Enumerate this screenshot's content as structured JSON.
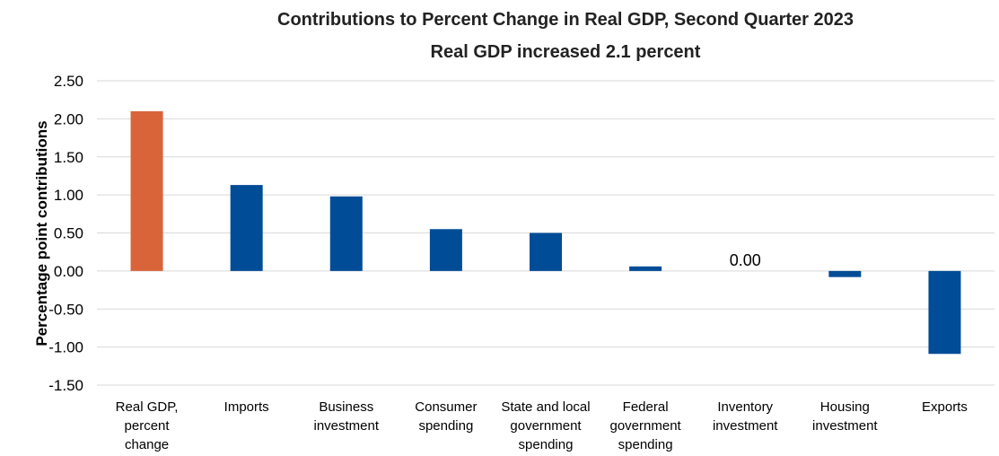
{
  "chart_data": {
    "type": "bar",
    "title": "Contributions to Percent Change in Real GDP, Second Quarter 2023",
    "subtitle": "Real GDP increased 2.1 percent",
    "xlabel": "",
    "ylabel": "Percentage point contributions",
    "ylim": [
      -1.5,
      2.5
    ],
    "yticks": [
      "2.50",
      "2.00",
      "1.50",
      "1.00",
      "0.50",
      "0.00",
      "-0.50",
      "-1.00",
      "-1.50"
    ],
    "grid": true,
    "legend": "none",
    "categories": [
      [
        "Real GDP,",
        "percent",
        "change"
      ],
      [
        "Imports"
      ],
      [
        "Business",
        "investment"
      ],
      [
        "Consumer",
        "spending"
      ],
      [
        "State and local",
        "government",
        "spending"
      ],
      [
        "Federal",
        "government",
        "spending"
      ],
      [
        "Inventory",
        "investment"
      ],
      [
        "Housing",
        "investment"
      ],
      [
        "Exports"
      ]
    ],
    "values": [
      2.1,
      1.13,
      0.98,
      0.55,
      0.5,
      0.06,
      0.0,
      -0.08,
      -1.09
    ],
    "data_labels": [
      {
        "index": 6,
        "text": "0.00"
      }
    ],
    "colors": {
      "highlight": "#d9643a",
      "default": "#004c97"
    }
  }
}
